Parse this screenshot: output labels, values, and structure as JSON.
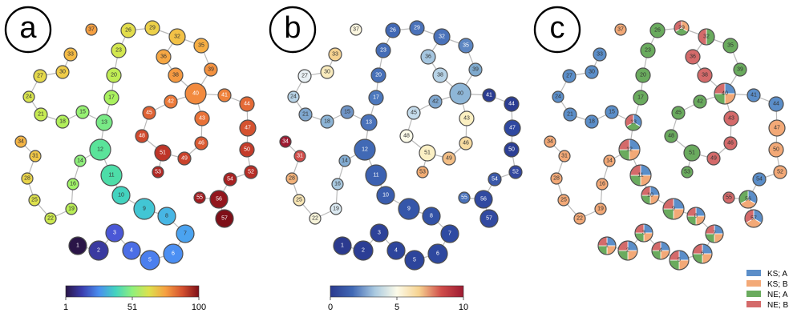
{
  "panels": [
    {
      "letter": "a",
      "offset": 0,
      "mode": "gradient",
      "colorbar": {
        "ticks": [
          "1",
          "51",
          "100"
        ]
      }
    },
    {
      "letter": "b",
      "offset": 330,
      "mode": "diverging",
      "colorbar": {
        "ticks": [
          "0",
          "5",
          "10"
        ]
      }
    },
    {
      "letter": "c",
      "offset": 660,
      "mode": "pie",
      "colorbar": null
    }
  ],
  "colors": {
    "ks_a": "#5b8ec9",
    "ks_b": "#f3a977",
    "ne_a": "#6aab5e",
    "ne_b": "#d46a6a"
  },
  "legend": [
    {
      "label": "KS; A",
      "color": "#5b8ec9"
    },
    {
      "label": "KS; B",
      "color": "#f3a977"
    },
    {
      "label": "NE; A",
      "color": "#6aab5e"
    },
    {
      "label": "NE; B",
      "color": "#d46a6a"
    }
  ],
  "nodes": [
    {
      "id": 1,
      "label": "1"
    },
    {
      "id": 2,
      "label": "2"
    },
    {
      "id": 3,
      "label": "3"
    },
    {
      "id": 4,
      "label": "4"
    },
    {
      "id": 5,
      "label": "5"
    },
    {
      "id": 6,
      "label": "6"
    },
    {
      "id": 7,
      "label": "7"
    },
    {
      "id": 8,
      "label": "8"
    },
    {
      "id": 9,
      "label": "9"
    },
    {
      "id": 10,
      "label": "10"
    },
    {
      "id": 11,
      "label": "11"
    },
    {
      "id": 12,
      "label": "12"
    },
    {
      "id": 13,
      "label": "13"
    },
    {
      "id": 14,
      "label": "14"
    },
    {
      "id": 15,
      "label": "15"
    },
    {
      "id": 16,
      "label": "16"
    },
    {
      "id": 17,
      "label": "17"
    },
    {
      "id": 18,
      "label": "18"
    },
    {
      "id": 19,
      "label": "19"
    },
    {
      "id": 20,
      "label": "20"
    },
    {
      "id": 21,
      "label": "21"
    },
    {
      "id": 22,
      "label": "22"
    },
    {
      "id": 23,
      "label": "23"
    },
    {
      "id": 24,
      "label": "24"
    },
    {
      "id": 25,
      "label": "25"
    },
    {
      "id": 26,
      "label": "26"
    },
    {
      "id": 27,
      "label": "27"
    },
    {
      "id": 28,
      "label": "28"
    },
    {
      "id": 29,
      "label": "29"
    },
    {
      "id": 30,
      "label": "30"
    },
    {
      "id": 31,
      "label": "31"
    },
    {
      "id": 32,
      "label": "32"
    },
    {
      "id": 33,
      "label": "33"
    },
    {
      "id": 34,
      "label": "34"
    },
    {
      "id": 35,
      "label": "35"
    },
    {
      "id": 36,
      "label": "36"
    },
    {
      "id": 37,
      "label": "37"
    },
    {
      "id": 38,
      "label": "38"
    },
    {
      "id": 39,
      "label": "39"
    },
    {
      "id": 40,
      "label": "40"
    },
    {
      "id": 41,
      "label": "41"
    },
    {
      "id": 42,
      "label": "42"
    },
    {
      "id": 43,
      "label": "43"
    },
    {
      "id": 44,
      "label": "44"
    },
    {
      "id": 45,
      "label": "45"
    },
    {
      "id": 46,
      "label": "46"
    },
    {
      "id": 47,
      "label": "47"
    },
    {
      "id": 48,
      "label": "48"
    },
    {
      "id": 49,
      "label": "49"
    },
    {
      "id": 50,
      "label": "50"
    },
    {
      "id": 51,
      "label": "51"
    },
    {
      "id": 52,
      "label": "52"
    },
    {
      "id": 53,
      "label": "53"
    },
    {
      "id": 54,
      "label": "54"
    },
    {
      "id": 55,
      "label": "55"
    },
    {
      "id": 56,
      "label": "56"
    },
    {
      "id": 57,
      "label": "57"
    }
  ],
  "edges": [
    [
      1,
      2
    ],
    [
      2,
      3
    ],
    [
      3,
      4
    ],
    [
      4,
      5
    ],
    [
      5,
      6
    ],
    [
      6,
      7
    ],
    [
      7,
      8
    ],
    [
      8,
      9
    ],
    [
      9,
      10
    ],
    [
      10,
      11
    ],
    [
      11,
      12
    ],
    [
      12,
      13
    ],
    [
      13,
      17
    ],
    [
      17,
      20
    ],
    [
      20,
      23
    ],
    [
      23,
      26
    ],
    [
      26,
      29
    ],
    [
      29,
      32
    ],
    [
      32,
      35
    ],
    [
      35,
      39
    ],
    [
      39,
      40
    ],
    [
      32,
      36
    ],
    [
      36,
      38
    ],
    [
      38,
      40
    ],
    [
      13,
      15
    ],
    [
      15,
      18
    ],
    [
      18,
      21
    ],
    [
      21,
      24
    ],
    [
      24,
      27
    ],
    [
      27,
      30
    ],
    [
      30,
      33
    ],
    [
      12,
      14
    ],
    [
      14,
      16
    ],
    [
      16,
      19
    ],
    [
      19,
      22
    ],
    [
      22,
      25
    ],
    [
      25,
      28
    ],
    [
      28,
      31
    ],
    [
      31,
      34
    ],
    [
      40,
      42
    ],
    [
      42,
      45
    ],
    [
      45,
      48
    ],
    [
      48,
      51
    ],
    [
      51,
      53
    ],
    [
      51,
      49
    ],
    [
      49,
      46
    ],
    [
      46,
      43
    ],
    [
      43,
      40
    ],
    [
      40,
      41
    ],
    [
      41,
      44
    ],
    [
      44,
      47
    ],
    [
      47,
      50
    ],
    [
      50,
      52
    ],
    [
      52,
      54
    ],
    [
      54,
      56
    ],
    [
      56,
      55
    ],
    [
      56,
      57
    ]
  ]
}
